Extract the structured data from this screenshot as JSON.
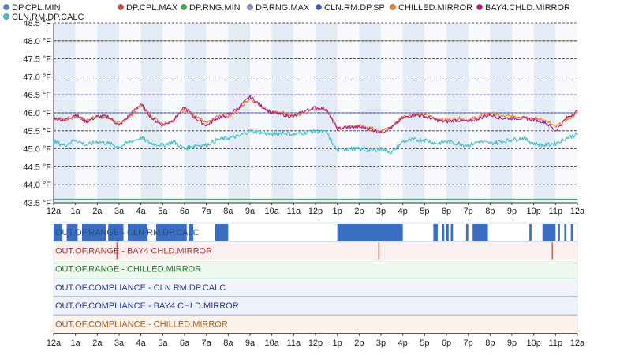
{
  "chart_data": [
    {
      "type": "line",
      "title": "",
      "xlabel": "",
      "ylabel": "",
      "x_ticks": [
        "12a",
        "1a",
        "2a",
        "3a",
        "4a",
        "5a",
        "6a",
        "7a",
        "8a",
        "9a",
        "10a",
        "11a",
        "12p",
        "1p",
        "2p",
        "3p",
        "4p",
        "5p",
        "6p",
        "7p",
        "8p",
        "9p",
        "10p",
        "11p",
        "12a"
      ],
      "x_range_hours": [
        0,
        24
      ],
      "y_ticks": [
        "43.5 °F",
        "44.0 °F",
        "44.5 °F",
        "45.0 °F",
        "45.5 °F",
        "46.0 °F",
        "46.5 °F",
        "47.0 °F",
        "47.5 °F",
        "48.0 °F",
        "48.5 °F"
      ],
      "ylim": [
        43.5,
        48.5
      ],
      "grid": true,
      "legend_position": "top",
      "limit_lines": [
        {
          "name": "DP.CPL.MIN",
          "color": "#3b7ccf",
          "value": 43.6
        },
        {
          "name": "DP.CPL.MAX",
          "color": "#c0392b",
          "value": 48.0
        },
        {
          "name": "DP.RNG.MIN",
          "color": "#2ca02c",
          "value": 43.6
        },
        {
          "name": "DP.RNG.MAX",
          "color": "#8e6fc0",
          "value": 46.5
        },
        {
          "name": "CLN.RM.DP.SP",
          "color": "#3b4fbf",
          "value": 46.0
        }
      ],
      "series": [
        {
          "name": "DP.CPL.MIN",
          "color": "#4a86c8"
        },
        {
          "name": "DP.CPL.MAX",
          "color": "#cf4b3b"
        },
        {
          "name": "DP.RNG.MIN",
          "color": "#3aa83a"
        },
        {
          "name": "DP.RNG.MAX",
          "color": "#9f82cf"
        },
        {
          "name": "CLN.RM.DP.SP",
          "color": "#4558c8"
        },
        {
          "name": "CHILLED.MIRROR",
          "color": "#e8812a",
          "x": [
            0,
            0.5,
            1,
            1.5,
            2,
            2.5,
            3,
            3.5,
            4,
            4.5,
            5,
            5.5,
            6,
            6.5,
            7,
            7.5,
            8,
            8.5,
            9,
            9.5,
            10,
            10.5,
            11,
            11.5,
            12,
            12.5,
            13,
            13.5,
            14,
            14.5,
            15,
            15.5,
            16,
            16.5,
            17,
            17.5,
            18,
            18.5,
            19,
            19.5,
            20,
            20.5,
            21,
            21.5,
            22,
            22.5,
            23,
            23.5,
            24
          ],
          "values": [
            45.9,
            45.8,
            45.9,
            45.8,
            45.9,
            45.85,
            45.7,
            45.9,
            46.2,
            45.9,
            45.7,
            45.8,
            46.1,
            45.9,
            45.7,
            45.9,
            45.9,
            46.1,
            46.4,
            46.2,
            46.0,
            46.0,
            45.9,
            46.0,
            46.1,
            46.1,
            45.6,
            45.6,
            45.65,
            45.6,
            45.5,
            45.6,
            45.9,
            45.95,
            45.95,
            45.85,
            45.8,
            45.85,
            45.8,
            45.9,
            46.0,
            45.9,
            45.9,
            45.9,
            45.85,
            45.8,
            45.6,
            45.8,
            46.0
          ]
        },
        {
          "name": "BAY4.CHLD.MIRROR",
          "color": "#b0208a",
          "x": [
            0,
            0.5,
            1,
            1.5,
            2,
            2.5,
            3,
            3.5,
            4,
            4.5,
            5,
            5.5,
            6,
            6.5,
            7,
            7.5,
            8,
            8.5,
            9,
            9.5,
            10,
            10.5,
            11,
            11.5,
            12,
            12.5,
            13,
            13.5,
            14,
            14.5,
            15,
            15.5,
            16,
            16.5,
            17,
            17.5,
            18,
            18.5,
            19,
            19.5,
            20,
            20.5,
            21,
            21.5,
            22,
            22.5,
            23,
            23.5,
            24
          ],
          "values": [
            45.85,
            45.8,
            45.95,
            45.75,
            45.9,
            45.9,
            45.65,
            45.95,
            46.25,
            45.85,
            45.65,
            45.8,
            46.15,
            45.85,
            45.65,
            45.85,
            45.95,
            46.15,
            46.45,
            46.2,
            46.0,
            45.95,
            45.9,
            46.05,
            46.15,
            46.1,
            45.55,
            45.6,
            45.6,
            45.55,
            45.45,
            45.6,
            45.85,
            45.95,
            45.9,
            45.8,
            45.75,
            45.8,
            45.75,
            45.85,
            45.95,
            45.85,
            45.85,
            45.85,
            45.8,
            45.75,
            45.5,
            45.85,
            46.05
          ]
        },
        {
          "name": "CLN.RM.DP.CALC",
          "color": "#3cc0cc",
          "x": [
            0,
            0.5,
            1,
            1.5,
            2,
            2.5,
            3,
            3.5,
            4,
            4.5,
            5,
            5.5,
            6,
            6.5,
            7,
            7.5,
            8,
            8.5,
            9,
            9.5,
            10,
            10.5,
            11,
            11.5,
            12,
            12.5,
            13,
            13.5,
            14,
            14.5,
            15,
            15.5,
            16,
            16.5,
            17,
            17.5,
            18,
            18.5,
            19,
            19.5,
            20,
            20.5,
            21,
            21.5,
            22,
            22.5,
            23,
            23.5,
            24
          ],
          "values": [
            45.2,
            45.1,
            45.25,
            45.1,
            45.2,
            45.15,
            45.05,
            45.2,
            45.3,
            45.15,
            45.1,
            45.2,
            45.0,
            45.1,
            45.1,
            45.25,
            45.3,
            45.35,
            45.5,
            45.45,
            45.4,
            45.45,
            45.4,
            45.45,
            45.5,
            45.45,
            44.95,
            45.0,
            45.0,
            44.95,
            45.0,
            44.9,
            45.2,
            45.25,
            45.25,
            45.15,
            45.2,
            45.15,
            45.1,
            45.2,
            45.15,
            45.2,
            45.25,
            45.3,
            45.15,
            45.1,
            45.15,
            45.3,
            45.4
          ]
        }
      ]
    },
    {
      "type": "timeline",
      "x_ticks": [
        "12a",
        "1a",
        "2a",
        "3a",
        "4a",
        "5a",
        "6a",
        "7a",
        "8a",
        "9a",
        "10a",
        "11a",
        "12p",
        "1p",
        "2p",
        "3p",
        "4p",
        "5p",
        "6p",
        "7p",
        "8p",
        "9p",
        "10p",
        "11p",
        "12a"
      ],
      "x_range_hours": [
        0,
        24
      ],
      "rows": [
        {
          "label": "OUT.OF.RANGE - CLN RM.DP.CALC",
          "color": "#3b6fc4",
          "bg": "#ffffff",
          "line": "#3b6fc4",
          "text_color": "#2d4a7a",
          "segments": [
            [
              0,
              0.4
            ],
            [
              0.6,
              1.1
            ],
            [
              1.3,
              2.4
            ],
            [
              2.5,
              3.2
            ],
            [
              3.4,
              4.3
            ],
            [
              4.7,
              6.1
            ],
            [
              6.2,
              6.4
            ],
            [
              7.4,
              8.0
            ],
            [
              13.0,
              16.0
            ],
            [
              17.4,
              17.6
            ],
            [
              17.8,
              17.9
            ],
            [
              18.0,
              18.1
            ],
            [
              18.2,
              18.3
            ],
            [
              18.9,
              19.0
            ],
            [
              19.2,
              19.9
            ],
            [
              21.8,
              21.9
            ],
            [
              22.4,
              23.0
            ],
            [
              23.1,
              23.2
            ],
            [
              23.4,
              23.5
            ],
            [
              23.7,
              23.8
            ]
          ]
        },
        {
          "label": "OUT.OF.RANGE - BAY4 CHLD.MIRROR",
          "color": "#c0392b",
          "bg": "#fbf0f0",
          "line": "#c0392b",
          "text_color": "#b03a2e",
          "segments": [
            [
              2.9,
              2.92
            ],
            [
              14.9,
              14.92
            ],
            [
              22.85,
              22.87
            ]
          ]
        },
        {
          "label": "OUT.OF.RANGE - CHILLED.MIRROR",
          "color": "#2ca02c",
          "bg": "#eef8ee",
          "line": "#2ca02c",
          "text_color": "#2a7d2a",
          "segments": []
        },
        {
          "label": "OUT.OF.COMPLIANCE - CLN RM.DP.CALC",
          "color": "#3b4fbf",
          "bg": "#f1f4fb",
          "line": "#3b4fbf",
          "text_color": "#2d3f8a",
          "segments": []
        },
        {
          "label": "OUT.OF.COMPLIANCE - BAY4 CHLD.MIRROR",
          "color": "#3b4fbf",
          "bg": "#eef1fa",
          "line": "#3b4fbf",
          "text_color": "#2d3f8a",
          "segments": []
        },
        {
          "label": "OUT.OF.COMPLIANCE - CHILLED.MIRROR",
          "color": "#e8812a",
          "bg": "#fbf3ec",
          "line": "#e8812a",
          "text_color": "#b0601e",
          "segments": []
        }
      ]
    }
  ]
}
